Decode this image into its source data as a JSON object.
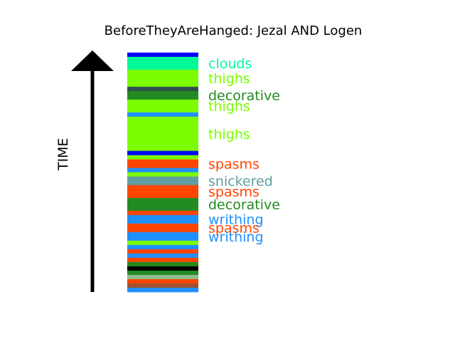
{
  "title": "BeforeTheyAreHanged: Jezal AND Logen",
  "axis_label": "TIME",
  "palette": {
    "blue": "#0000ff",
    "aquamarine": "#00fa9a",
    "lawngreen": "#7cfc00",
    "darkslategray": "#2f4f4f",
    "forestgreen": "#228b22",
    "dodgerblue": "#1e90ff",
    "orangered": "#ff4500",
    "cadetblue": "#5f9ea0",
    "black": "#000000",
    "sienna": "#a0522d",
    "darkseagreen": "#8fbc8f",
    "arrow": "#000000"
  },
  "chart_data": {
    "type": "timeline-strip",
    "title": "BeforeTheyAreHanged: Jezal AND Logen",
    "ylabel": "TIME",
    "direction": "bottom-to-top",
    "segments_top_to_bottom": [
      {
        "word": "",
        "color": "blue",
        "weight": 1
      },
      {
        "word": "clouds",
        "color": "aquamarine",
        "weight": 3
      },
      {
        "word": "thighs",
        "color": "lawngreen",
        "weight": 4
      },
      {
        "word": "",
        "color": "darkslategray",
        "weight": 1
      },
      {
        "word": "decorative",
        "color": "forestgreen",
        "weight": 2
      },
      {
        "word": "thighs",
        "color": "lawngreen",
        "weight": 3
      },
      {
        "word": "",
        "color": "dodgerblue",
        "weight": 1
      },
      {
        "word": "thighs",
        "color": "lawngreen",
        "weight": 8
      },
      {
        "word": "",
        "color": "blue",
        "weight": 1
      },
      {
        "word": "",
        "color": "lawngreen",
        "weight": 1
      },
      {
        "word": "spasms",
        "color": "orangered",
        "weight": 2
      },
      {
        "word": "",
        "color": "dodgerblue",
        "weight": 1
      },
      {
        "word": "",
        "color": "lawngreen",
        "weight": 1
      },
      {
        "word": "snickered",
        "color": "cadetblue",
        "weight": 2
      },
      {
        "word": "spasms",
        "color": "orangered",
        "weight": 3
      },
      {
        "word": "decorative",
        "color": "forestgreen",
        "weight": 3
      },
      {
        "word": "",
        "color": "orangered",
        "weight": 1
      },
      {
        "word": "writhing",
        "color": "dodgerblue",
        "weight": 2
      },
      {
        "word": "spasms",
        "color": "orangered",
        "weight": 2
      },
      {
        "word": "writhing",
        "color": "dodgerblue",
        "weight": 2
      },
      {
        "word": "",
        "color": "lawngreen",
        "weight": 1
      },
      {
        "word": "",
        "color": "dodgerblue",
        "weight": 1
      },
      {
        "word": "",
        "color": "orangered",
        "weight": 1
      },
      {
        "word": "",
        "color": "dodgerblue",
        "weight": 1
      },
      {
        "word": "",
        "color": "orangered",
        "weight": 1
      },
      {
        "word": "",
        "color": "forestgreen",
        "weight": 1
      },
      {
        "word": "",
        "color": "black",
        "weight": 1
      },
      {
        "word": "",
        "color": "forestgreen",
        "weight": 1
      },
      {
        "word": "",
        "color": "darkseagreen",
        "weight": 1
      },
      {
        "word": "",
        "color": "orangered",
        "weight": 1
      },
      {
        "word": "",
        "color": "sienna",
        "weight": 1
      },
      {
        "word": "",
        "color": "dodgerblue",
        "weight": 1
      }
    ],
    "labels": [
      {
        "text": "clouds",
        "color": "aquamarine"
      },
      {
        "text": "thighs",
        "color": "lawngreen"
      },
      {
        "text": "decorative",
        "color": "forestgreen"
      },
      {
        "text": "thighs",
        "color": "lawngreen"
      },
      {
        "text": "thighs",
        "color": "lawngreen"
      },
      {
        "text": "spasms",
        "color": "orangered"
      },
      {
        "text": "snickered",
        "color": "cadetblue"
      },
      {
        "text": "spasms",
        "color": "orangered"
      },
      {
        "text": "decorative",
        "color": "forestgreen"
      },
      {
        "text": "writhing",
        "color": "dodgerblue"
      },
      {
        "text": "spasms",
        "color": "orangered"
      },
      {
        "text": "writhing",
        "color": "dodgerblue"
      }
    ]
  }
}
